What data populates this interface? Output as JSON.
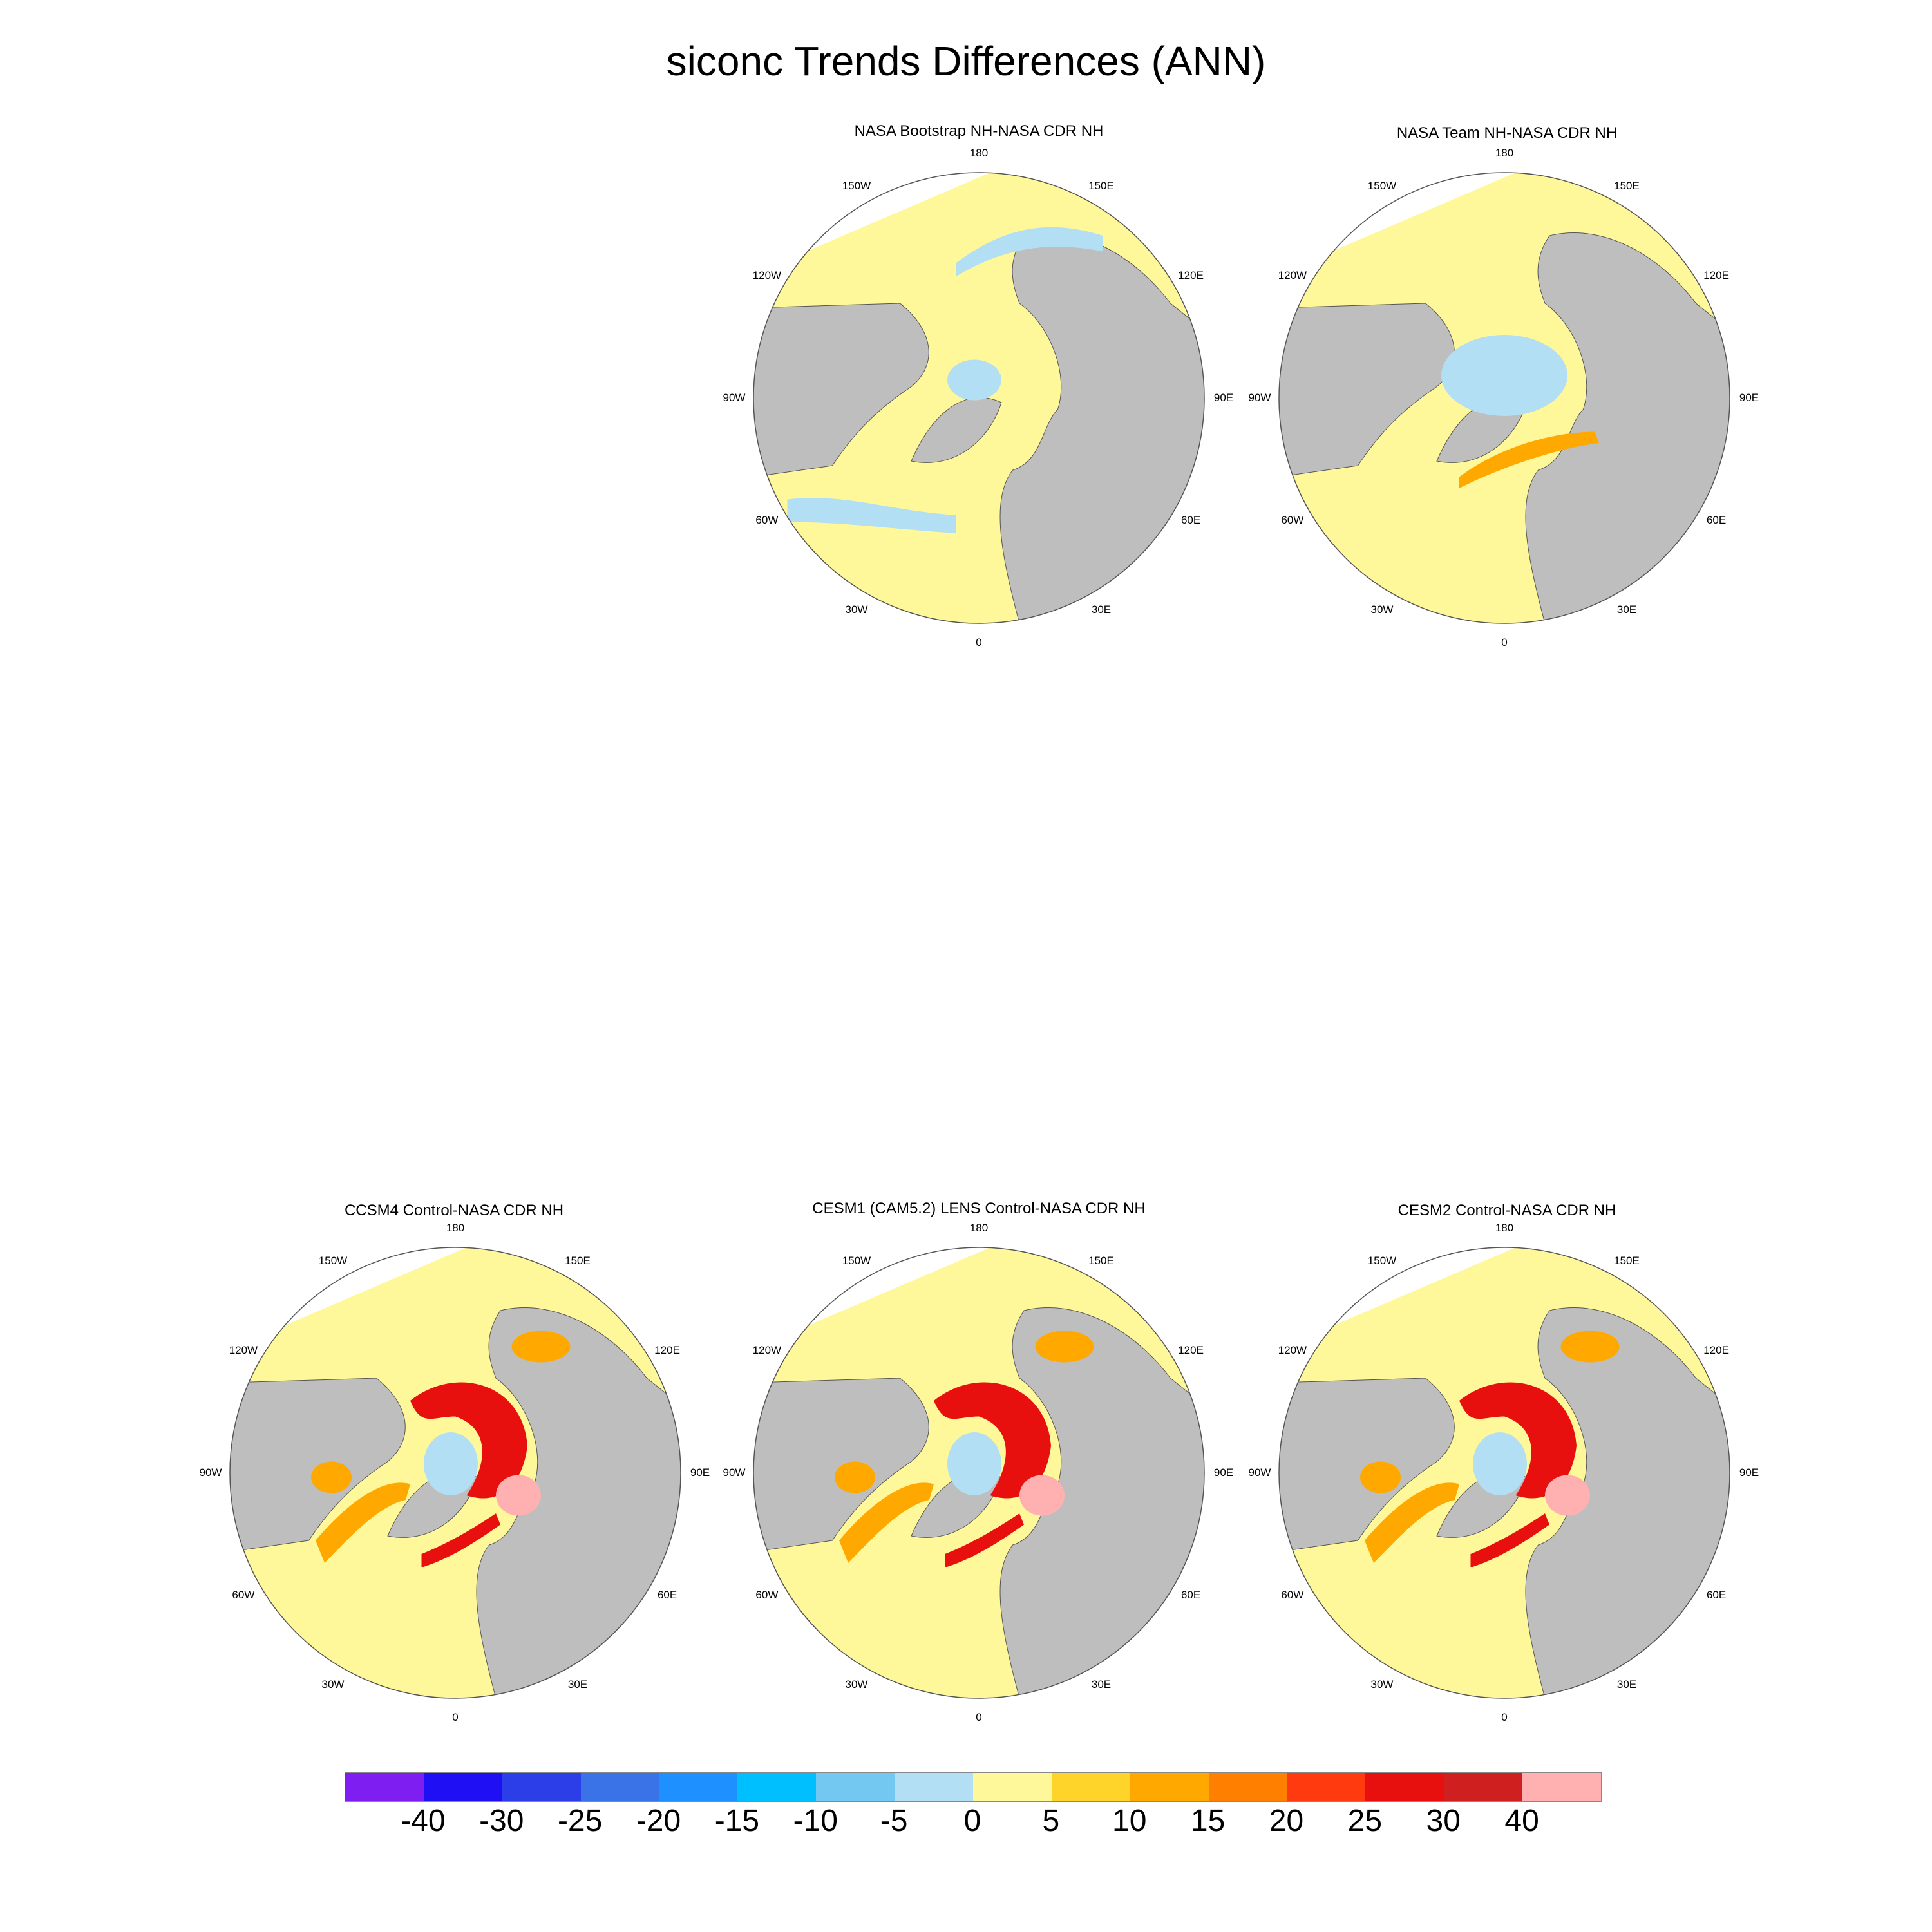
{
  "figure": {
    "title": "siconc Trends Differences (ANN)"
  },
  "colors": {
    "land": "#bebebe",
    "ocean_neutral": "#fff89a",
    "ice_neg": "#b3dff4",
    "strong_pos": "#e8100f",
    "mid_pos": "#ffa800",
    "very_strong_pos": "#ffb1b1"
  },
  "longitude_labels": [
    "180",
    "150E",
    "120E",
    "90E",
    "60E",
    "30E",
    "0",
    "30W",
    "60W",
    "90W",
    "120W",
    "150W"
  ],
  "panels": [
    {
      "title": "NASA Bootstrap NH-NASA CDR NH",
      "pattern": "bootstrap"
    },
    {
      "title": "NASA Team NH-NASA CDR NH",
      "pattern": "team"
    },
    {
      "title": "CCSM4 Control-NASA CDR NH",
      "pattern": "model"
    },
    {
      "title": "CESM1 (CAM5.2) LENS Control-NASA CDR NH",
      "pattern": "model"
    },
    {
      "title": "CESM2 Control-NASA CDR NH",
      "pattern": "model"
    }
  ],
  "colorbar": {
    "colors": [
      "#7f1ef0",
      "#1f0ff5",
      "#2c3ee8",
      "#3a73e8",
      "#1e90ff",
      "#00bfff",
      "#72c8f0",
      "#b3dff4",
      "#fff89a",
      "#ffd42a",
      "#ffa800",
      "#ff7f00",
      "#ff3a0e",
      "#e8100f",
      "#cf1f1f",
      "#ffb1b1"
    ],
    "labels": [
      "-40",
      "-30",
      "-25",
      "-20",
      "-15",
      "-10",
      "-5",
      "0",
      "5",
      "10",
      "15",
      "20",
      "25",
      "30",
      "40"
    ]
  }
}
